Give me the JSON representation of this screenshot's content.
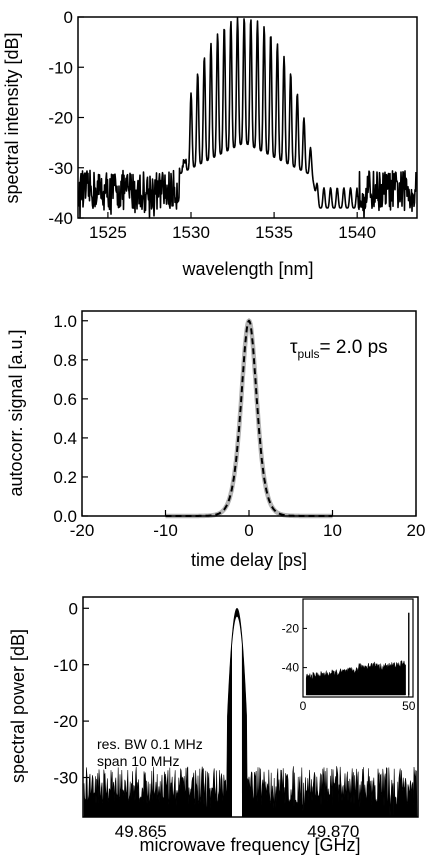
{
  "chart_data": [
    {
      "type": "line",
      "xlabel": "wavelength [nm]",
      "ylabel": "spectral intensity [dB]",
      "xlim": [
        1523.2,
        1543.6
      ],
      "ylim": [
        -40,
        0
      ],
      "xticks": [
        1525,
        1530,
        1535,
        1540
      ],
      "yticks": [
        0,
        -10,
        -20,
        -30,
        -40
      ],
      "comb": {
        "center_nm": 1533.2,
        "line_spacing_nm": 0.4,
        "peak_db": 0,
        "floor_db": -38,
        "spectrum_edges_nm": [
          1529.3,
          1540.0
        ]
      },
      "grid": false
    },
    {
      "type": "line",
      "xlabel": "time delay [ps]",
      "ylabel": "autocorr. signal [a.u.]",
      "xlim": [
        -20,
        20
      ],
      "ylim": [
        0,
        1.05
      ],
      "xticks": [
        -20,
        -10,
        0,
        10,
        20
      ],
      "yticks": [
        0.0,
        0.2,
        0.4,
        0.6,
        0.8,
        1.0
      ],
      "annotation": {
        "symbol": "τ",
        "subscript": "puls",
        "text": "= 2.0 ps"
      },
      "series": [
        {
          "style": "measured",
          "color": "#b4b4b4",
          "x_range": [
            -10,
            10
          ],
          "fwhm_ps": 2.0,
          "peak": 1.0
        },
        {
          "style": "fit",
          "color": "#000000",
          "x_range": [
            -10,
            10
          ],
          "fwhm_ps": 2.0,
          "peak": 1.0
        }
      ],
      "grid": false
    },
    {
      "type": "line",
      "xlabel": "microwave frequency [GHz]",
      "ylabel": "spectral power [dB]",
      "xlim": [
        49.8635,
        49.8722
      ],
      "ylim": [
        -37,
        2
      ],
      "xticks": [
        49.865,
        49.87
      ],
      "yticks": [
        0,
        -10,
        -20,
        -30
      ],
      "annotation_lines": [
        "res. BW 0.1 MHz",
        "span 10 MHz"
      ],
      "peak": {
        "freq_ghz": 49.8675,
        "power_db": 0
      },
      "noise_floor_db": -33,
      "inset": {
        "xlim": [
          0,
          52
        ],
        "ylim": [
          -55,
          -5
        ],
        "xticks": [
          0,
          50
        ],
        "yticks": [
          -20,
          -40
        ],
        "noise_start_db": -45,
        "noise_end_db": -38,
        "spike": {
          "x": 50,
          "y": -12
        }
      },
      "grid": false
    }
  ]
}
